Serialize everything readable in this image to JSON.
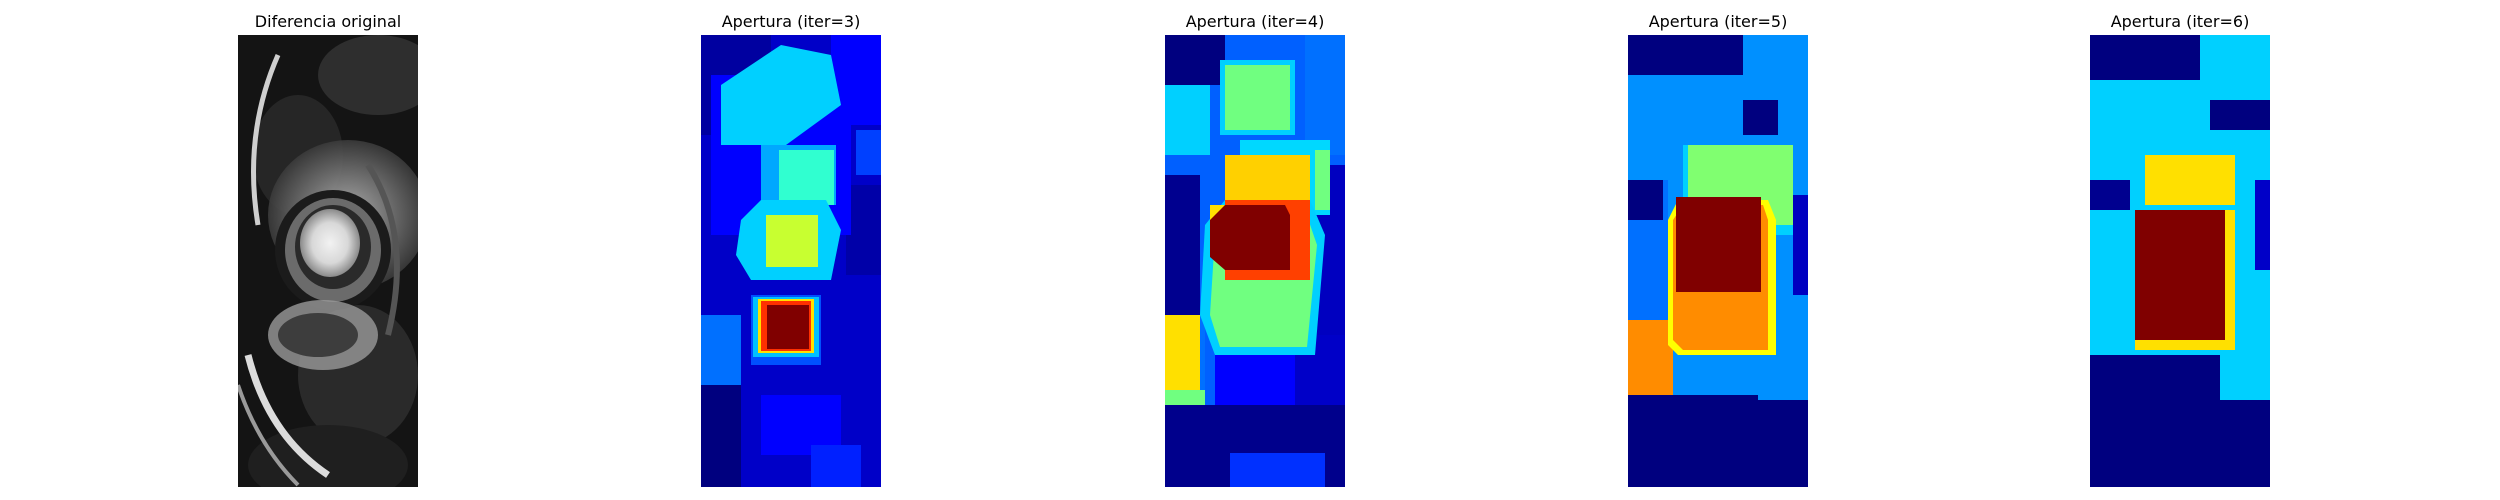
{
  "figure": {
    "panels": [
      {
        "title": "Diferencia original",
        "colormap": "gray"
      },
      {
        "title": "Apertura (iter=3)",
        "colormap": "jet"
      },
      {
        "title": "Apertura (iter=4)",
        "colormap": "jet"
      },
      {
        "title": "Apertura (iter=5)",
        "colormap": "jet"
      },
      {
        "title": "Apertura (iter=6)",
        "colormap": "jet"
      }
    ]
  }
}
